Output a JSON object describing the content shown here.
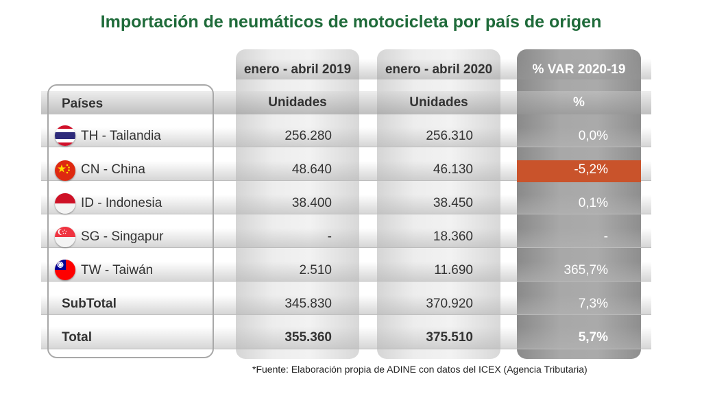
{
  "title": "Importación de neumáticos de motocicleta por país de origen",
  "colors": {
    "title": "#1f6b3a",
    "negative": "#c9532b",
    "var_column": "#a0a0a0"
  },
  "chart_data": {
    "type": "table",
    "periods": [
      "enero - abril  2019",
      "enero - abril  2020",
      "% VAR 2020-19"
    ],
    "columns": [
      "Países",
      "Unidades",
      "Unidades",
      "%"
    ],
    "rows": [
      {
        "flag": "thailand-flag-icon",
        "country": "TH - Tailandia",
        "u2019": "256.280",
        "u2020": "256.310",
        "var": "0,0%"
      },
      {
        "flag": "china-flag-icon",
        "country": "CN - China",
        "u2019": "48.640",
        "u2020": "46.130",
        "var": "-5,2%"
      },
      {
        "flag": "indonesia-flag-icon",
        "country": "ID - Indonesia",
        "u2019": "38.400",
        "u2020": "38.450",
        "var": "0,1%"
      },
      {
        "flag": "singapore-flag-icon",
        "country": "SG - Singapur",
        "u2019": "-",
        "u2020": "18.360",
        "var": "-"
      },
      {
        "flag": "taiwan-flag-icon",
        "country": "TW - Taiwán",
        "u2019": "2.510",
        "u2020": "11.690",
        "var": "365,7%"
      }
    ],
    "subtotal": {
      "label": "SubTotal",
      "u2019": "345.830",
      "u2020": "370.920",
      "var": "7,3%"
    },
    "total": {
      "label": "Total",
      "u2019": "355.360",
      "u2020": "375.510",
      "var": "5,7%"
    }
  },
  "source": "*Fuente: Elaboración propia de ADINE con datos del ICEX (Agencia Tributaria)"
}
